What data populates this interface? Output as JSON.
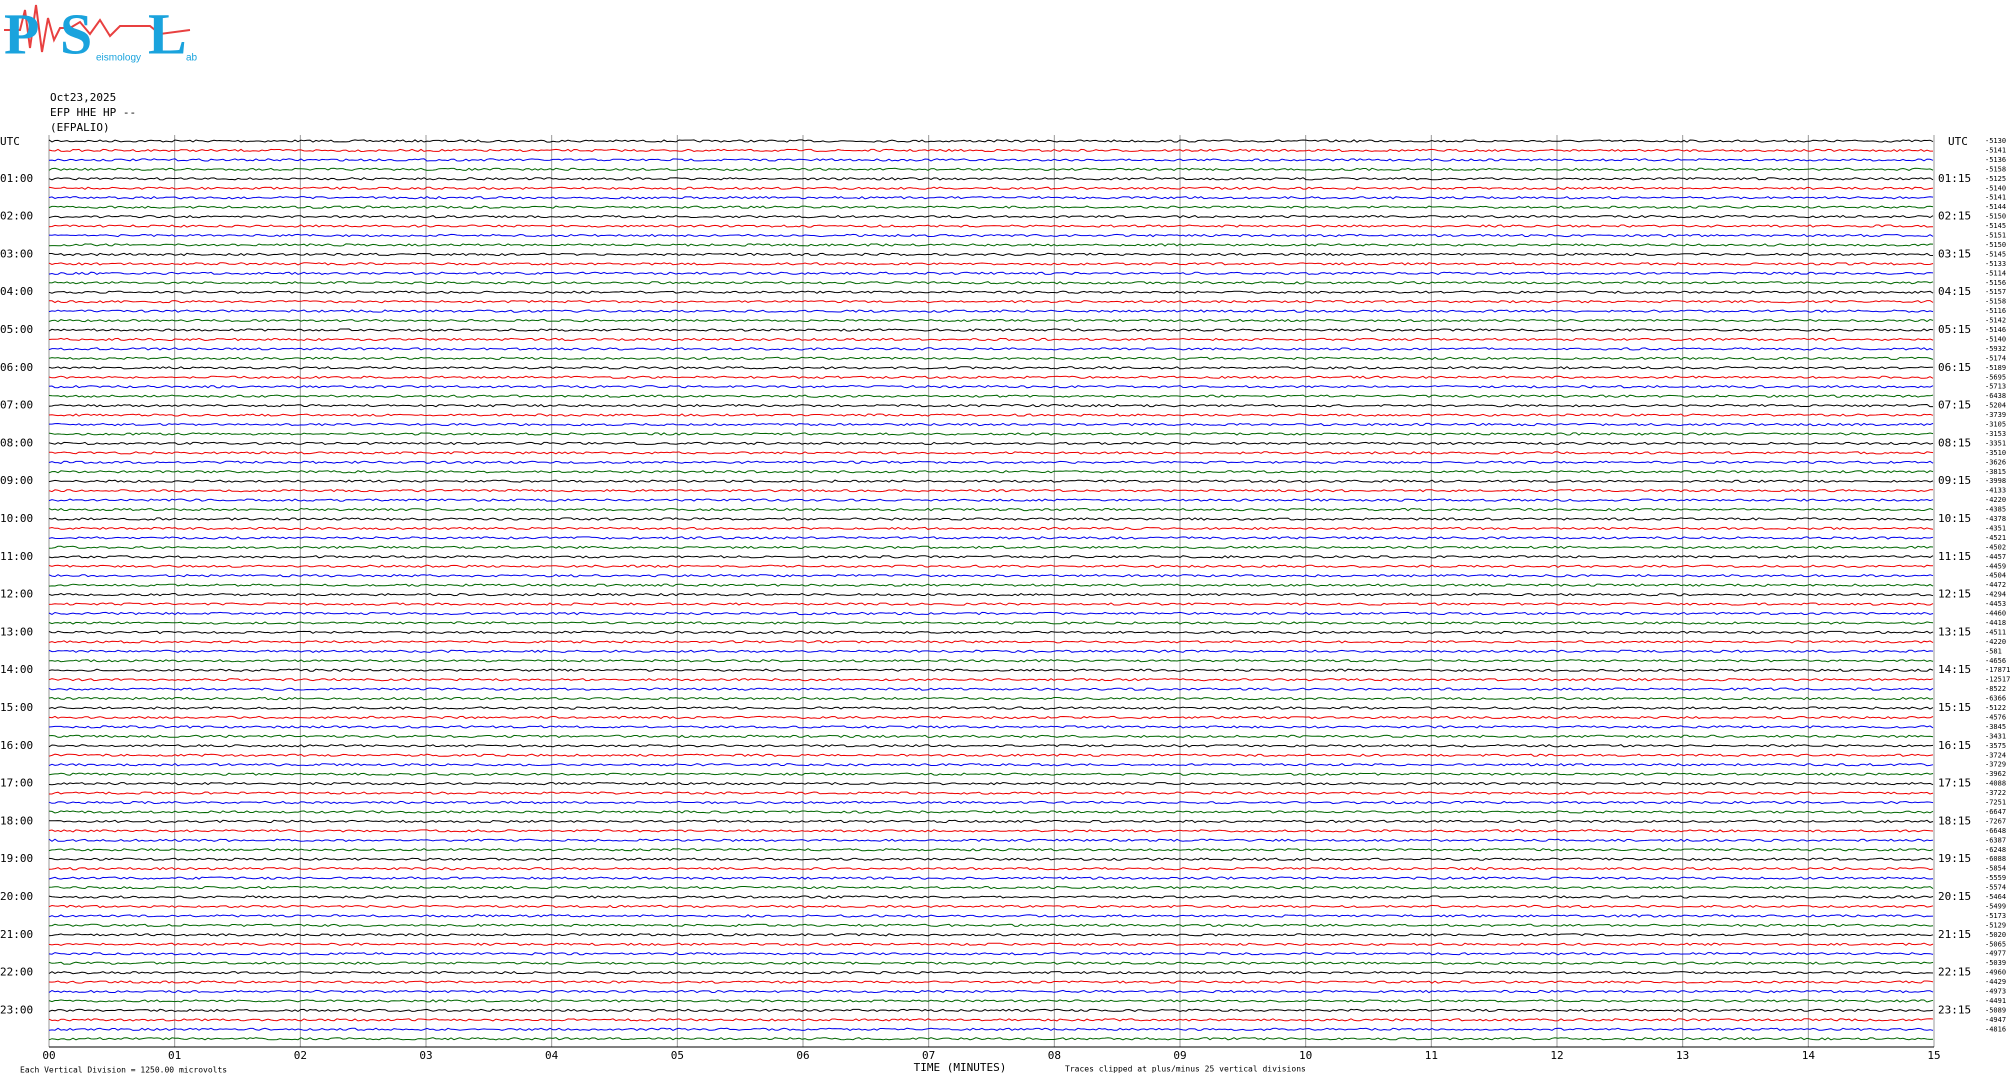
{
  "logo": {
    "letters": [
      "P",
      "S",
      "L"
    ],
    "small": [
      "eismology",
      "ab"
    ]
  },
  "header": {
    "date": "Oct23,2025",
    "station": "EFP HHE HP --",
    "name": "(EFPALIO)"
  },
  "left_axis": {
    "title": "UTC",
    "labels": [
      "01:00",
      "02:00",
      "03:00",
      "04:00",
      "05:00",
      "06:00",
      "07:00",
      "08:00",
      "09:00",
      "10:00",
      "11:00",
      "12:00",
      "13:00",
      "14:00",
      "15:00",
      "16:00",
      "17:00",
      "18:00",
      "19:00",
      "20:00",
      "21:00",
      "22:00",
      "23:00"
    ]
  },
  "right_axis": {
    "title": "UTC",
    "labels": [
      "01:15",
      "02:15",
      "03:15",
      "04:15",
      "05:15",
      "06:15",
      "07:15",
      "08:15",
      "09:15",
      "10:15",
      "11:15",
      "12:15",
      "13:15",
      "14:15",
      "15:15",
      "16:15",
      "17:15",
      "18:15",
      "19:15",
      "20:15",
      "21:15",
      "22:15",
      "23:15"
    ],
    "offsets": [
      "-5130",
      "-5141",
      "-5136",
      "-5158",
      "-5125",
      "-5140",
      "-5141",
      "-5144",
      "-5150",
      "-5145",
      "-5151",
      "-5150",
      "-5145",
      "-5133",
      "-5114",
      "-5156",
      "-5157",
      "-5158",
      "-5116",
      "-5142",
      "-5146",
      "-5140",
      "-5932",
      "-5174",
      "-5189",
      "-5695",
      "-5713",
      "-6438",
      "-5204",
      "-3739",
      "-3105",
      "-3153",
      "-3351",
      "-3510",
      "-3626",
      "-3815",
      "-3998",
      "-4133",
      "-4220",
      "-4385",
      "-4378",
      "-4351",
      "-4521",
      "-4502",
      "-4457",
      "-4459",
      "-4504",
      "-4472",
      "-4294",
      "-4453",
      "-4460",
      "-4418",
      "-4511",
      "-4220",
      "-581",
      "-4656",
      "-17871",
      "-12517",
      "-8522",
      "-6366",
      "-5122",
      "-4576",
      "-3845",
      "-3431",
      "-3575",
      "-3724",
      "-3729",
      "-3962",
      "-4088",
      "-3722",
      "-7251",
      "-6647",
      "-7267",
      "-6648",
      "-6387",
      "-6248",
      "-6088",
      "-5854",
      "-5559",
      "-5574",
      "-5464",
      "-5499",
      "-5173",
      "-5129",
      "-5020",
      "-5065",
      "-4977",
      "-5039",
      "-4960",
      "-4429",
      "-4973",
      "-4491",
      "-5089",
      "-4947",
      "-4816"
    ]
  },
  "x_axis": {
    "ticks": [
      "00",
      "01",
      "02",
      "03",
      "04",
      "05",
      "06",
      "07",
      "08",
      "09",
      "10",
      "11",
      "12",
      "13",
      "14",
      "15"
    ],
    "title": "TIME (MINUTES)"
  },
  "footer": {
    "scale": "Each Vertical Division = 1250.00 microvolts",
    "clip": "Traces clipped at plus/minus 25 vertical divisions"
  }
}
